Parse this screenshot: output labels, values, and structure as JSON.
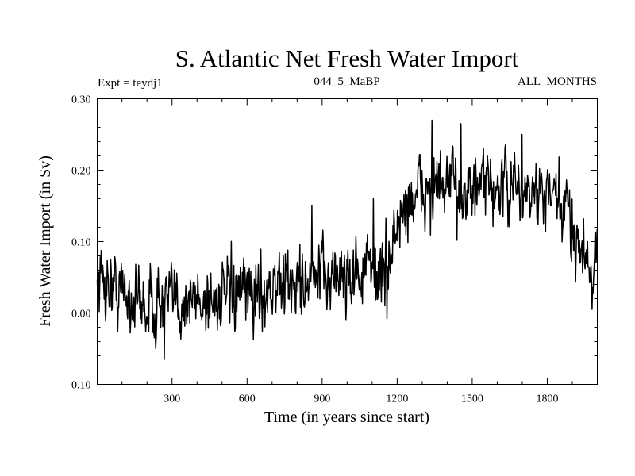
{
  "chart_data": {
    "type": "line",
    "title": "S. Atlantic Net Fresh Water Import",
    "subtitle_left": "Expt = teydj1",
    "subtitle_center": "044_5_MaBP",
    "subtitle_right": "ALL_MONTHS",
    "xlabel": "Time (in years since start)",
    "ylabel": "Fresh Water Import (in Sv)",
    "xlim": [
      1,
      2000
    ],
    "ylim": [
      -0.1,
      0.3
    ],
    "x_ticks": [
      300,
      600,
      900,
      1200,
      1500,
      1800
    ],
    "x_tick_labels": [
      "300",
      "600",
      "900",
      "1200",
      "1500",
      "1800"
    ],
    "y_ticks": [
      -0.1,
      0.0,
      0.1,
      0.2,
      0.3
    ],
    "y_tick_labels": [
      "-0.10",
      "0.00",
      "0.10",
      "0.20",
      "0.30"
    ],
    "reference_line": 0.0,
    "series": [
      {
        "name": "Net Fresh Water Import",
        "color": "#000000",
        "trend_x": [
          1,
          100,
          200,
          300,
          450,
          600,
          750,
          900,
          1000,
          1100,
          1150,
          1200,
          1250,
          1300,
          1400,
          1500,
          1600,
          1700,
          1800,
          1880,
          1950,
          2000
        ],
        "trend_y": [
          0.05,
          0.03,
          0.01,
          0.015,
          0.02,
          0.025,
          0.04,
          0.05,
          0.055,
          0.06,
          0.055,
          0.12,
          0.16,
          0.17,
          0.175,
          0.17,
          0.175,
          0.17,
          0.16,
          0.14,
          0.08,
          0.075
        ],
        "noise_amplitude": 0.028,
        "spikes": [
          {
            "x": 1340,
            "y": 0.27
          },
          {
            "x": 1455,
            "y": 0.265
          },
          {
            "x": 1700,
            "y": 0.25
          },
          {
            "x": 1160,
            "y": -0.008
          },
          {
            "x": 270,
            "y": -0.065
          },
          {
            "x": 1980,
            "y": 0.005
          },
          {
            "x": 1105,
            "y": 0.16
          },
          {
            "x": 860,
            "y": 0.15
          }
        ]
      }
    ]
  }
}
